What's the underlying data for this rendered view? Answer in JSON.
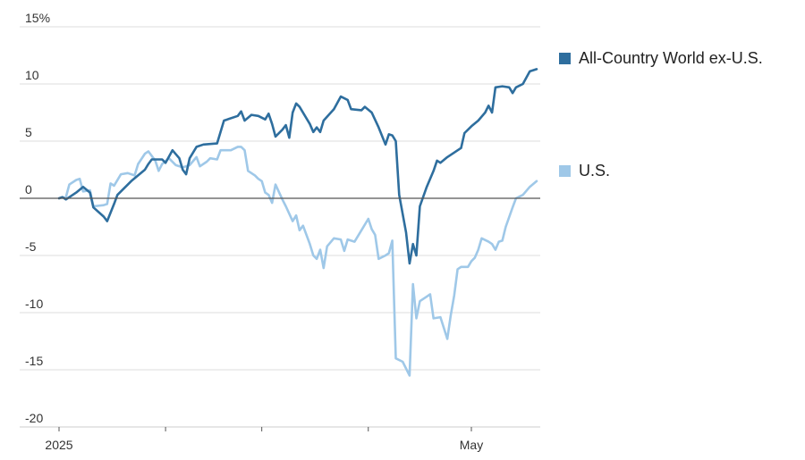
{
  "chart_data": {
    "type": "line",
    "ylim": [
      -20,
      15
    ],
    "y_ticks": [
      15,
      10,
      5,
      0,
      -5,
      -10,
      -15,
      -20
    ],
    "y_tick_labels": [
      "15%",
      "10",
      "5",
      "0",
      "-5",
      "-10",
      "-15",
      "-20"
    ],
    "x_tick_labels": [
      {
        "label": "2025",
        "date": "2025-01-01"
      },
      {
        "label": "May",
        "date": "2025-05-01"
      }
    ],
    "x_range": [
      "2025-01-01",
      "2025-05-20"
    ],
    "x_minor_ticks": [
      "2025-02-01",
      "2025-03-01",
      "2025-04-01"
    ],
    "grid": "horizontal",
    "colors": {
      "acwx": "#2e6e9e",
      "us": "#9fc8e8",
      "grid": "#dddddd",
      "zero": "#555555"
    },
    "series": [
      {
        "name": "All-Country World ex-U.S.",
        "color": "#2e6e9e",
        "points": [
          [
            "2025-01-01",
            0
          ],
          [
            "2025-01-02",
            0.1
          ],
          [
            "2025-01-03",
            -0.1
          ],
          [
            "2025-01-06",
            0.5
          ],
          [
            "2025-01-08",
            1.0
          ],
          [
            "2025-01-10",
            0.5
          ],
          [
            "2025-01-11",
            -0.8
          ],
          [
            "2025-01-14",
            -1.6
          ],
          [
            "2025-01-15",
            -2.0
          ],
          [
            "2025-01-17",
            -0.5
          ],
          [
            "2025-01-18",
            0.3
          ],
          [
            "2025-01-22",
            1.5
          ],
          [
            "2025-01-26",
            2.5
          ],
          [
            "2025-01-27",
            3.0
          ],
          [
            "2025-01-28",
            3.4
          ],
          [
            "2025-01-31",
            3.4
          ],
          [
            "2025-02-01",
            3.1
          ],
          [
            "2025-02-03",
            4.2
          ],
          [
            "2025-02-05",
            3.5
          ],
          [
            "2025-02-06",
            2.5
          ],
          [
            "2025-02-07",
            2.1
          ],
          [
            "2025-02-08",
            3.5
          ],
          [
            "2025-02-10",
            4.5
          ],
          [
            "2025-02-12",
            4.7
          ],
          [
            "2025-02-16",
            4.8
          ],
          [
            "2025-02-18",
            6.8
          ],
          [
            "2025-02-22",
            7.2
          ],
          [
            "2025-02-23",
            7.6
          ],
          [
            "2025-02-24",
            6.8
          ],
          [
            "2025-02-26",
            7.3
          ],
          [
            "2025-02-28",
            7.2
          ],
          [
            "2025-03-02",
            6.9
          ],
          [
            "2025-03-03",
            7.4
          ],
          [
            "2025-03-04",
            6.5
          ],
          [
            "2025-03-05",
            5.4
          ],
          [
            "2025-03-07",
            6.0
          ],
          [
            "2025-03-08",
            6.4
          ],
          [
            "2025-03-09",
            5.3
          ],
          [
            "2025-03-10",
            7.5
          ],
          [
            "2025-03-11",
            8.3
          ],
          [
            "2025-03-12",
            8.0
          ],
          [
            "2025-03-15",
            6.5
          ],
          [
            "2025-03-16",
            5.8
          ],
          [
            "2025-03-17",
            6.2
          ],
          [
            "2025-03-18",
            5.8
          ],
          [
            "2025-03-19",
            6.8
          ],
          [
            "2025-03-22",
            7.8
          ],
          [
            "2025-03-24",
            8.9
          ],
          [
            "2025-03-26",
            8.6
          ],
          [
            "2025-03-27",
            7.8
          ],
          [
            "2025-03-30",
            7.7
          ],
          [
            "2025-03-31",
            8.0
          ],
          [
            "2025-04-02",
            7.5
          ],
          [
            "2025-04-04",
            6.2
          ],
          [
            "2025-04-06",
            4.7
          ],
          [
            "2025-04-07",
            5.6
          ],
          [
            "2025-04-08",
            5.5
          ],
          [
            "2025-04-09",
            5.0
          ],
          [
            "2025-04-10",
            0.3
          ],
          [
            "2025-04-12",
            -3.0
          ],
          [
            "2025-04-13",
            -5.7
          ],
          [
            "2025-04-14",
            -4.0
          ],
          [
            "2025-04-15",
            -5.0
          ],
          [
            "2025-04-16",
            -0.7
          ],
          [
            "2025-04-18",
            1.0
          ],
          [
            "2025-04-20",
            2.4
          ],
          [
            "2025-04-21",
            3.3
          ],
          [
            "2025-04-22",
            3.1
          ],
          [
            "2025-04-24",
            3.6
          ],
          [
            "2025-04-26",
            4.0
          ],
          [
            "2025-04-28",
            4.4
          ],
          [
            "2025-04-29",
            5.7
          ],
          [
            "2025-05-01",
            6.3
          ],
          [
            "2025-05-03",
            6.8
          ],
          [
            "2025-05-05",
            7.5
          ],
          [
            "2025-05-06",
            8.1
          ],
          [
            "2025-05-07",
            7.5
          ],
          [
            "2025-05-08",
            9.7
          ],
          [
            "2025-05-10",
            9.8
          ],
          [
            "2025-05-12",
            9.7
          ],
          [
            "2025-05-13",
            9.2
          ],
          [
            "2025-05-14",
            9.7
          ],
          [
            "2025-05-16",
            10.0
          ],
          [
            "2025-05-18",
            11.1
          ],
          [
            "2025-05-20",
            11.3
          ]
        ]
      },
      {
        "name": "U.S.",
        "color": "#9fc8e8",
        "points": [
          [
            "2025-01-01",
            0
          ],
          [
            "2025-01-03",
            0.1
          ],
          [
            "2025-01-04",
            1.2
          ],
          [
            "2025-01-06",
            1.6
          ],
          [
            "2025-01-07",
            1.7
          ],
          [
            "2025-01-08",
            0.6
          ],
          [
            "2025-01-10",
            0.7
          ],
          [
            "2025-01-11",
            -0.7
          ],
          [
            "2025-01-14",
            -0.6
          ],
          [
            "2025-01-15",
            -0.5
          ],
          [
            "2025-01-16",
            1.3
          ],
          [
            "2025-01-17",
            1.1
          ],
          [
            "2025-01-19",
            2.1
          ],
          [
            "2025-01-21",
            2.2
          ],
          [
            "2025-01-23",
            2.0
          ],
          [
            "2025-01-24",
            3.0
          ],
          [
            "2025-01-26",
            3.9
          ],
          [
            "2025-01-27",
            4.1
          ],
          [
            "2025-01-29",
            3.3
          ],
          [
            "2025-01-30",
            2.4
          ],
          [
            "2025-01-31",
            3.0
          ],
          [
            "2025-02-02",
            3.5
          ],
          [
            "2025-02-04",
            2.9
          ],
          [
            "2025-02-06",
            2.7
          ],
          [
            "2025-02-08",
            2.9
          ],
          [
            "2025-02-10",
            3.6
          ],
          [
            "2025-02-11",
            2.8
          ],
          [
            "2025-02-13",
            3.2
          ],
          [
            "2025-02-14",
            3.5
          ],
          [
            "2025-02-16",
            3.4
          ],
          [
            "2025-02-17",
            4.2
          ],
          [
            "2025-02-20",
            4.2
          ],
          [
            "2025-02-22",
            4.5
          ],
          [
            "2025-02-23",
            4.5
          ],
          [
            "2025-02-24",
            4.2
          ],
          [
            "2025-02-25",
            2.4
          ],
          [
            "2025-02-27",
            2.0
          ],
          [
            "2025-02-28",
            1.7
          ],
          [
            "2025-03-01",
            1.5
          ],
          [
            "2025-03-02",
            0.5
          ],
          [
            "2025-03-03",
            0.3
          ],
          [
            "2025-03-04",
            -0.4
          ],
          [
            "2025-03-05",
            1.2
          ],
          [
            "2025-03-07",
            -0.1
          ],
          [
            "2025-03-08",
            -0.7
          ],
          [
            "2025-03-10",
            -2.0
          ],
          [
            "2025-03-11",
            -1.5
          ],
          [
            "2025-03-12",
            -2.8
          ],
          [
            "2025-03-13",
            -2.4
          ],
          [
            "2025-03-15",
            -4.0
          ],
          [
            "2025-03-16",
            -5.0
          ],
          [
            "2025-03-17",
            -5.3
          ],
          [
            "2025-03-18",
            -4.5
          ],
          [
            "2025-03-19",
            -6.1
          ],
          [
            "2025-03-20",
            -4.2
          ],
          [
            "2025-03-22",
            -3.5
          ],
          [
            "2025-03-24",
            -3.6
          ],
          [
            "2025-03-25",
            -4.6
          ],
          [
            "2025-03-26",
            -3.6
          ],
          [
            "2025-03-28",
            -3.8
          ],
          [
            "2025-03-30",
            -2.8
          ],
          [
            "2025-04-01",
            -1.8
          ],
          [
            "2025-04-02",
            -2.7
          ],
          [
            "2025-04-03",
            -3.2
          ],
          [
            "2025-04-04",
            -5.3
          ],
          [
            "2025-04-06",
            -5.0
          ],
          [
            "2025-04-07",
            -4.8
          ],
          [
            "2025-04-08",
            -3.7
          ],
          [
            "2025-04-09",
            -14.0
          ],
          [
            "2025-04-11",
            -14.3
          ],
          [
            "2025-04-13",
            -15.5
          ],
          [
            "2025-04-14",
            -7.5
          ],
          [
            "2025-04-15",
            -10.5
          ],
          [
            "2025-04-16",
            -9.0
          ],
          [
            "2025-04-18",
            -8.6
          ],
          [
            "2025-04-19",
            -8.4
          ],
          [
            "2025-04-20",
            -10.5
          ],
          [
            "2025-04-22",
            -10.4
          ],
          [
            "2025-04-24",
            -12.3
          ],
          [
            "2025-04-25",
            -10.2
          ],
          [
            "2025-04-26",
            -8.5
          ],
          [
            "2025-04-27",
            -6.2
          ],
          [
            "2025-04-28",
            -6.0
          ],
          [
            "2025-04-30",
            -6.0
          ],
          [
            "2025-05-01",
            -5.5
          ],
          [
            "2025-05-02",
            -5.2
          ],
          [
            "2025-05-03",
            -4.5
          ],
          [
            "2025-05-04",
            -3.5
          ],
          [
            "2025-05-06",
            -3.8
          ],
          [
            "2025-05-07",
            -4.0
          ],
          [
            "2025-05-08",
            -4.5
          ],
          [
            "2025-05-09",
            -3.8
          ],
          [
            "2025-05-10",
            -3.7
          ],
          [
            "2025-05-11",
            -2.5
          ],
          [
            "2025-05-13",
            -0.8
          ],
          [
            "2025-05-14",
            0.0
          ],
          [
            "2025-05-16",
            0.3
          ],
          [
            "2025-05-18",
            1.0
          ],
          [
            "2025-05-20",
            1.5
          ]
        ]
      }
    ]
  }
}
